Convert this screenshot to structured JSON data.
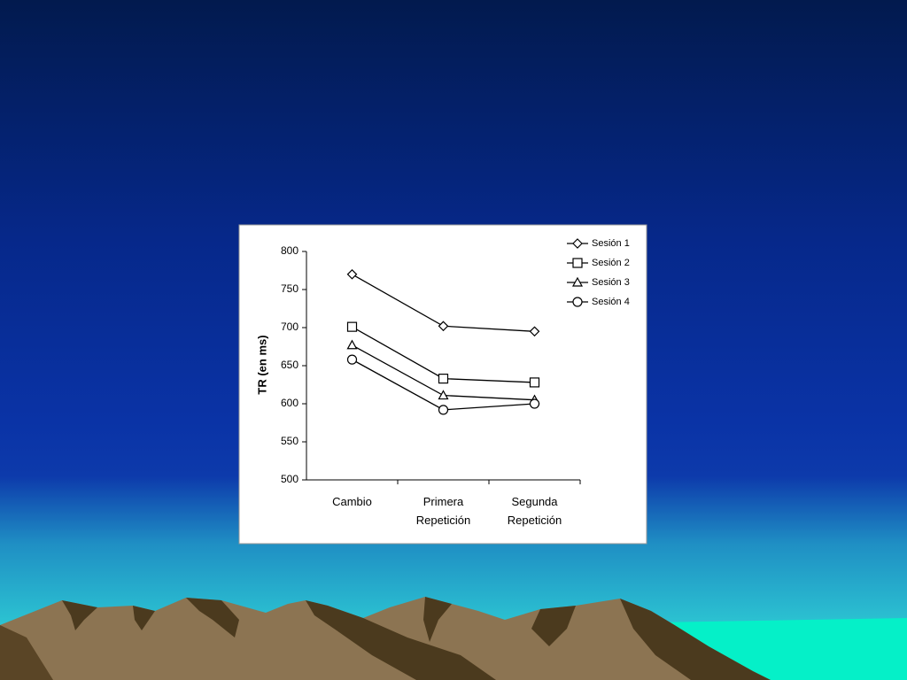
{
  "chart_data": {
    "type": "line",
    "y_label": "TR (en ms)",
    "categories": [
      "Cambio",
      "Primera Repetición",
      "Segunda Repetición"
    ],
    "series": [
      {
        "name": "Sesión 1",
        "color": "#000000",
        "marker": "diamond",
        "values": [
          770,
          702,
          695
        ]
      },
      {
        "name": "Sesión 2",
        "color": "#000000",
        "marker": "square",
        "values": [
          701,
          633,
          628
        ]
      },
      {
        "name": "Sesión 3",
        "color": "#000000",
        "marker": "triangle",
        "values": [
          677,
          611,
          605
        ]
      },
      {
        "name": "Sesión 4",
        "color": "#000000",
        "marker": "circle",
        "values": [
          658,
          592,
          600
        ]
      }
    ],
    "ylim": [
      500,
      800
    ],
    "yticks": [
      500,
      550,
      600,
      650,
      700,
      750,
      800
    ],
    "grid": false,
    "legend": "top-right"
  }
}
